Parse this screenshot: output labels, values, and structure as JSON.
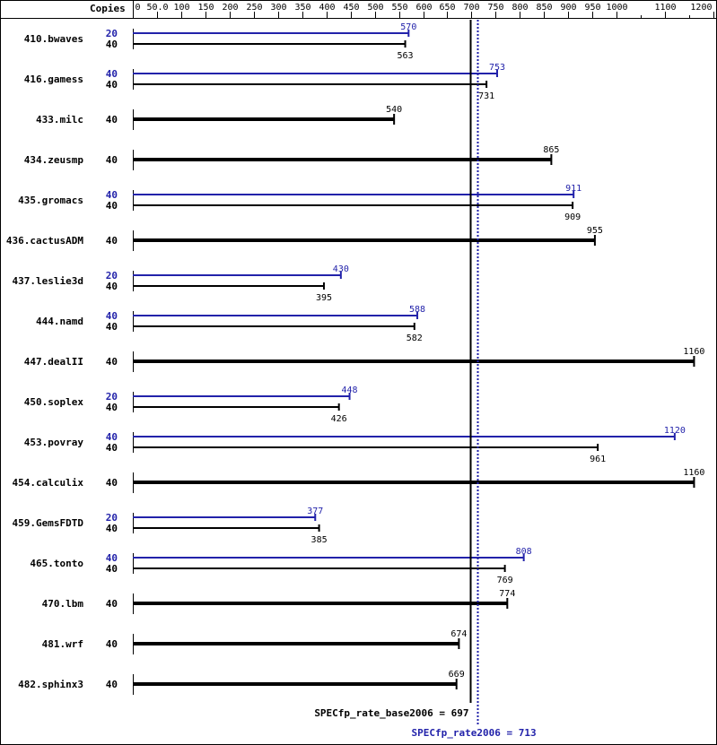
{
  "chart_data": {
    "type": "bar",
    "orientation": "horizontal",
    "axis_label": "Copies",
    "xlim": [
      0,
      1200
    ],
    "ticks": [
      0,
      50,
      100,
      150,
      200,
      250,
      300,
      350,
      400,
      450,
      500,
      550,
      600,
      650,
      700,
      750,
      800,
      850,
      900,
      950,
      1000,
      1100,
      1200
    ],
    "tick_labels": [
      "0",
      "50.0",
      "100",
      "150",
      "200",
      "250",
      "300",
      "350",
      "400",
      "450",
      "500",
      "550",
      "600",
      "650",
      "700",
      "750",
      "800",
      "850",
      "900",
      "950",
      "1000",
      "1100",
      "1200"
    ],
    "colors": {
      "base": "#000000",
      "peak": "#2222aa"
    },
    "benchmarks": [
      {
        "name": "410.bwaves",
        "peak_copies": "20",
        "peak": 570,
        "base_copies": "40",
        "base": 563
      },
      {
        "name": "416.gamess",
        "peak_copies": "40",
        "peak": 753,
        "base_copies": "40",
        "base": 731
      },
      {
        "name": "433.milc",
        "base_copies": "40",
        "base": 540
      },
      {
        "name": "434.zeusmp",
        "base_copies": "40",
        "base": 865
      },
      {
        "name": "435.gromacs",
        "peak_copies": "40",
        "peak": 911,
        "base_copies": "40",
        "base": 909
      },
      {
        "name": "436.cactusADM",
        "base_copies": "40",
        "base": 955
      },
      {
        "name": "437.leslie3d",
        "peak_copies": "20",
        "peak": 430,
        "base_copies": "40",
        "base": 395
      },
      {
        "name": "444.namd",
        "peak_copies": "40",
        "peak": 588,
        "base_copies": "40",
        "base": 582
      },
      {
        "name": "447.dealII",
        "base_copies": "40",
        "base": 1160
      },
      {
        "name": "450.soplex",
        "peak_copies": "20",
        "peak": 448,
        "base_copies": "40",
        "base": 426
      },
      {
        "name": "453.povray",
        "peak_copies": "40",
        "peak": 1120,
        "base_copies": "40",
        "base": 961
      },
      {
        "name": "454.calculix",
        "base_copies": "40",
        "base": 1160
      },
      {
        "name": "459.GemsFDTD",
        "peak_copies": "20",
        "peak": 377,
        "base_copies": "40",
        "base": 385
      },
      {
        "name": "465.tonto",
        "peak_copies": "40",
        "peak": 808,
        "base_copies": "40",
        "base": 769
      },
      {
        "name": "470.lbm",
        "base_copies": "40",
        "base": 774
      },
      {
        "name": "481.wrf",
        "base_copies": "40",
        "base": 674
      },
      {
        "name": "482.sphinx3",
        "base_copies": "40",
        "base": 669
      }
    ],
    "summary": {
      "base_label": "SPECfp_rate_base2006 = 697",
      "base_value": 697,
      "peak_label": "SPECfp_rate2006 = 713",
      "peak_value": 713
    }
  }
}
